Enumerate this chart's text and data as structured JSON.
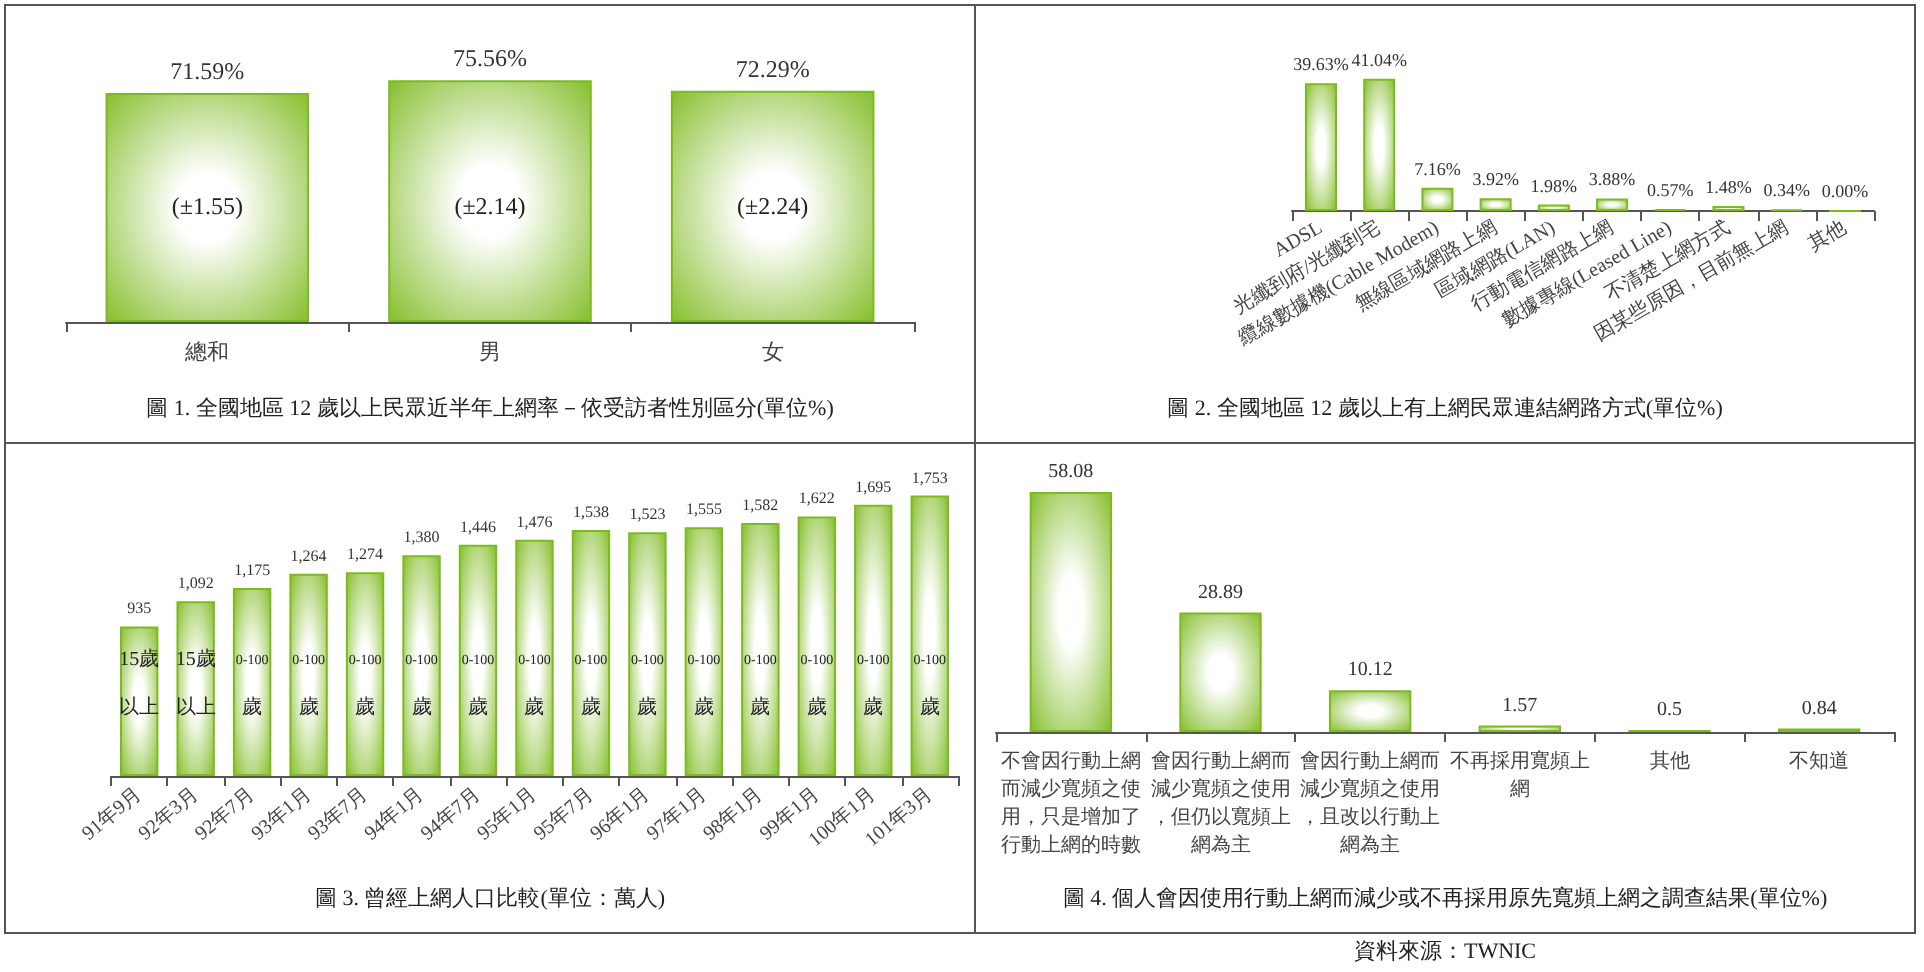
{
  "chart_data": [
    {
      "type": "bar",
      "title": "圖 1. 全國地區 12 歲以上民眾近半年上網率－依受訪者性別區分(單位%)",
      "categories": [
        "總和",
        "男",
        "女"
      ],
      "values": [
        71.59,
        75.56,
        72.29
      ],
      "value_labels": [
        "71.59%",
        "75.56%",
        "72.29%"
      ],
      "color": "#7dba1e",
      "annotations": [
        "(±1.55)",
        "(±2.14)",
        "(±2.24)"
      ]
    },
    {
      "type": "bar",
      "title": "圖 2. 全國地區 12 歲以上有上網民眾連結網路方式(單位%)",
      "categories": [
        "ADSL",
        "光纖到府/光纖到宅",
        "纜線數據機(Cable Modem)",
        "無線區域網路上網",
        "區域網路(LAN)",
        "行動電信網路上網",
        "數據專線(Leased Line)",
        "不清楚上網方式",
        "因某些原因，目前無上網",
        "其他"
      ],
      "values": [
        39.63,
        41.04,
        7.16,
        3.92,
        1.98,
        3.88,
        0.57,
        1.48,
        0.34,
        0.0
      ],
      "value_labels": [
        "39.63%",
        "41.04%",
        "7.16%",
        "3.92%",
        "1.98%",
        "3.88%",
        "0.57%",
        "1.48%",
        "0.34%",
        "0.00%"
      ],
      "color": "#7dba1e"
    },
    {
      "type": "bar",
      "title": "圖 3. 曾經上網人口比較(單位：萬人)",
      "categories": [
        "91年9月",
        "92年3月",
        "92年7月",
        "93年1月",
        "93年7月",
        "94年1月",
        "94年7月",
        "95年1月",
        "95年7月",
        "96年1月",
        "97年1月",
        "98年1月",
        "99年1月",
        "100年1月",
        "101年3月"
      ],
      "values": [
        935,
        1092,
        1175,
        1264,
        1274,
        1380,
        1446,
        1476,
        1538,
        1523,
        1555,
        1582,
        1622,
        1695,
        1753
      ],
      "value_labels": [
        "935",
        "1,092",
        "1,175",
        "1,264",
        "1,274",
        "1,380",
        "1,446",
        "1,476",
        "1,538",
        "1,523",
        "1,555",
        "1,582",
        "1,622",
        "1,695",
        "1,753"
      ],
      "color": "#7dba1e",
      "annotations": [
        "15歲",
        "以上",
        "15歲",
        "以上",
        "0-100",
        "歲",
        "0-100",
        "歲",
        "0-100",
        "歲",
        "0-100",
        "歲",
        "0-100",
        "歲",
        "0-100",
        "歲",
        "0-100",
        "歲",
        "0-100",
        "歲",
        "0-100",
        "歲",
        "0-100",
        "歲",
        "0-100",
        "歲",
        "0-100",
        "歲",
        "0-100",
        "歲"
      ]
    },
    {
      "type": "bar",
      "title": "圖 4. 個人會因使用行動上網而減少或不再採用原先寬頻上網之調查結果(單位%)",
      "categories": [
        "不會因行動上網而減少寬頻之使用，只是增加了行動上網的時數",
        "會因行動上網而減少寬頻之使用，但仍以寬頻上網為主",
        "會因行動上網而減少寬頻之使用，且改以行動上網為主",
        "不再採用寬頻上網",
        "其他",
        "不知道"
      ],
      "values": [
        58.08,
        28.89,
        10.12,
        1.57,
        0.5,
        0.84
      ],
      "data_labels": true,
      "color": "#7dba1e",
      "annotations": [
        "資料來源：TWNIC"
      ]
    }
  ]
}
